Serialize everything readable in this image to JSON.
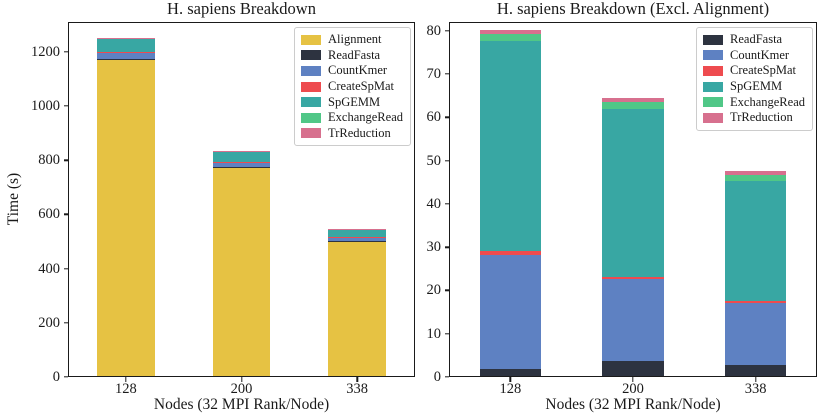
{
  "figure": {
    "background": "#ffffff",
    "text_color": "#1a1a1a"
  },
  "chart_data": [
    {
      "type": "bar",
      "stacked": true,
      "title": "H. sapiens Breakdown",
      "xlabel": "Nodes (32 MPI Rank/Node)",
      "ylabel": "Time (s)",
      "categories": [
        "128",
        "200",
        "338"
      ],
      "ylim": [
        0,
        1310
      ],
      "ytick_step": 200,
      "grid": false,
      "legend_position": "upper right",
      "series": [
        {
          "name": "Alignment",
          "color": "#e6c243",
          "values": [
            1170.0,
            770.0,
            500.0
          ]
        },
        {
          "name": "ReadFasta",
          "color": "#2d3340",
          "values": [
            1.8,
            3.8,
            2.7
          ]
        },
        {
          "name": "CountKmer",
          "color": "#5e81c2",
          "values": [
            26.4,
            18.9,
            14.5
          ]
        },
        {
          "name": "CreateSpMat",
          "color": "#ee4b4f",
          "values": [
            0.8,
            0.5,
            0.4
          ]
        },
        {
          "name": "SpGEMM",
          "color": "#38a7a3",
          "values": [
            48.5,
            38.8,
            27.7
          ]
        },
        {
          "name": "ExchangeRead",
          "color": "#50c787",
          "values": [
            1.8,
            1.5,
            1.4
          ]
        },
        {
          "name": "TrReduction",
          "color": "#d7708e",
          "values": [
            0.9,
            0.9,
            0.8
          ]
        }
      ]
    },
    {
      "type": "bar",
      "stacked": true,
      "title": "H. sapiens Breakdown (Excl. Alignment)",
      "xlabel": "Nodes (32 MPI Rank/Node)",
      "categories": [
        "128",
        "200",
        "338"
      ],
      "ylim": [
        0,
        82
      ],
      "ytick_step": 10,
      "grid": false,
      "legend_position": "upper right",
      "series": [
        {
          "name": "ReadFasta",
          "color": "#2d3340",
          "values": [
            1.8,
            3.8,
            2.7
          ]
        },
        {
          "name": "CountKmer",
          "color": "#5e81c2",
          "values": [
            26.4,
            18.9,
            14.5
          ]
        },
        {
          "name": "CreateSpMat",
          "color": "#ee4b4f",
          "values": [
            0.8,
            0.5,
            0.4
          ]
        },
        {
          "name": "SpGEMM",
          "color": "#38a7a3",
          "values": [
            48.5,
            38.8,
            27.7
          ]
        },
        {
          "name": "ExchangeRead",
          "color": "#50c787",
          "values": [
            1.8,
            1.5,
            1.4
          ]
        },
        {
          "name": "TrReduction",
          "color": "#d7708e",
          "values": [
            0.9,
            0.9,
            0.8
          ]
        }
      ]
    }
  ]
}
